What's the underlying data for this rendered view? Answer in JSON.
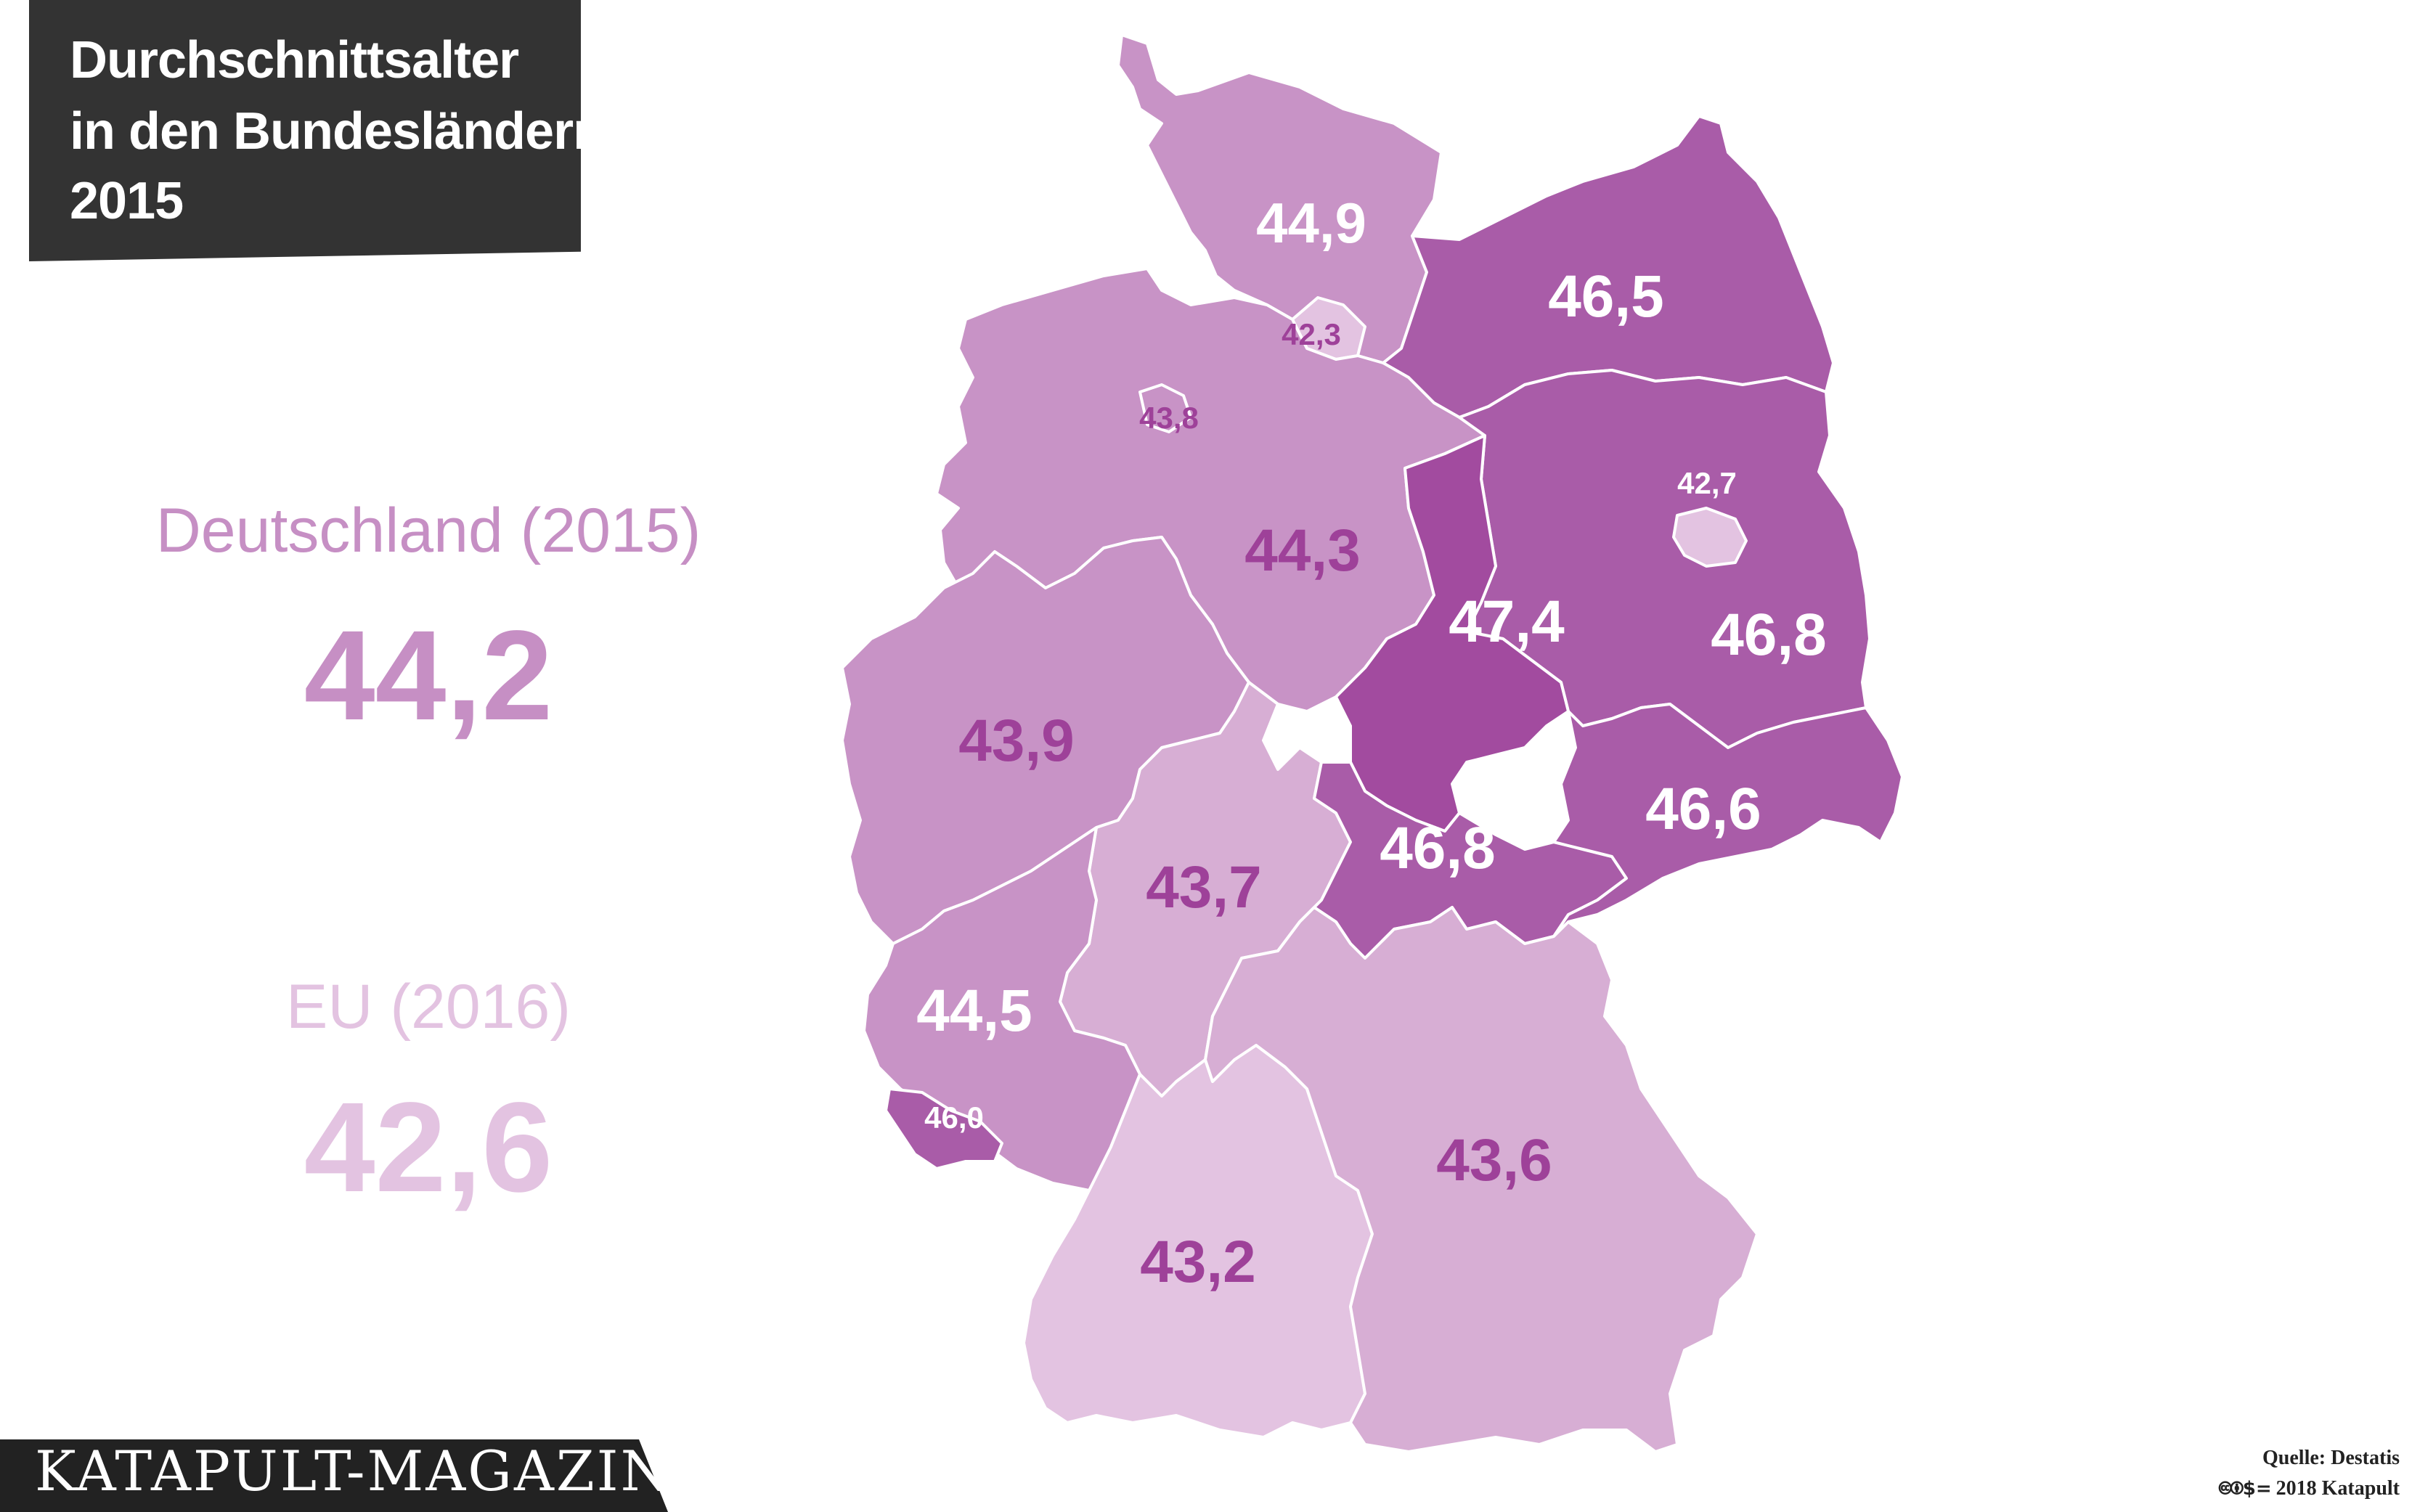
{
  "title": {
    "line1": "Durchschnittsalter",
    "line2": "in den Bundesländern",
    "line3": "2015"
  },
  "germany": {
    "label": "Deutschland (2015)",
    "value": "44,2",
    "color": "#c68fc4"
  },
  "eu": {
    "label": "EU (2016)",
    "value": "42,6",
    "color": "#e3c3e1"
  },
  "brand": "KATAPULT-MAGAZIN.de",
  "source": "Quelle: Destatis",
  "copyright": "2018 Katapult",
  "cc_icons": "🅭🅯$=",
  "map_data": {
    "colors": {
      "lightest": "#e3c3e1",
      "light": "#d7aed4",
      "medium": "#c893c6",
      "strong": "#a95ca8",
      "darkest": "#a24b9f",
      "label_dark": "#9e4199",
      "label_light": "#ffffff"
    },
    "states": [
      {
        "name": "Schleswig-Holstein",
        "value": "44,9"
      },
      {
        "name": "Hamburg",
        "value": "42,3"
      },
      {
        "name": "Niedersachsen",
        "value": "44,3"
      },
      {
        "name": "Bremen",
        "value": "43,8"
      },
      {
        "name": "Mecklenburg-Vorpommern",
        "value": "46,5"
      },
      {
        "name": "Berlin",
        "value": "42,7"
      },
      {
        "name": "Brandenburg",
        "value": "46,8"
      },
      {
        "name": "Sachsen-Anhalt",
        "value": "47,4"
      },
      {
        "name": "Nordrhein-Westfalen",
        "value": "43,9"
      },
      {
        "name": "Hessen",
        "value": "43,7"
      },
      {
        "name": "Thüringen",
        "value": "46,8"
      },
      {
        "name": "Sachsen",
        "value": "46,6"
      },
      {
        "name": "Rheinland-Pfalz",
        "value": "44,5"
      },
      {
        "name": "Saarland",
        "value": "46,0"
      },
      {
        "name": "Baden-Württemberg",
        "value": "43,2"
      },
      {
        "name": "Bayern",
        "value": "43,6"
      }
    ]
  }
}
